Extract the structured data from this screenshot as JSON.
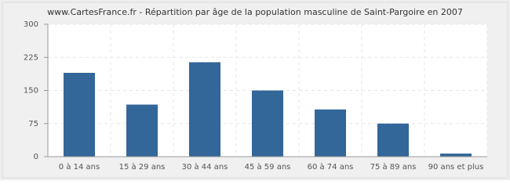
{
  "chart_data": {
    "type": "bar",
    "title": "www.CartesFrance.fr - Répartition par âge de la population masculine de Saint-Pargoire en 2007",
    "categories": [
      "0 à 14 ans",
      "15 à 29 ans",
      "30 à 44 ans",
      "45 à 59 ans",
      "60 à 74 ans",
      "75 à 89 ans",
      "90 ans et plus"
    ],
    "values": [
      190,
      118,
      214,
      150,
      107,
      75,
      7
    ],
    "color": "#336699",
    "ylim": [
      0,
      300
    ],
    "yticks": [
      0,
      75,
      150,
      225,
      300
    ],
    "grid": true
  }
}
